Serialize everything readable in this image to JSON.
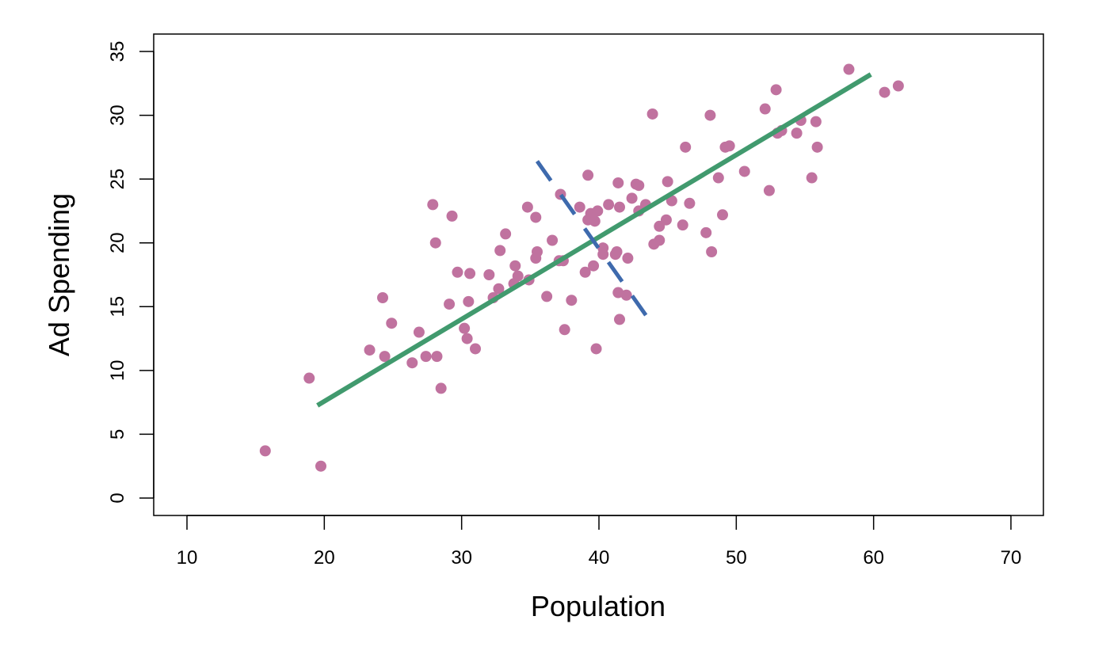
{
  "chart_data": {
    "type": "scatter",
    "title": "",
    "xlabel": "Population",
    "ylabel": "Ad Spending",
    "xlim": [
      7.5,
      72.5
    ],
    "ylim": [
      -1.3,
      36.4
    ],
    "xticks": [
      10,
      20,
      30,
      40,
      50,
      60,
      70
    ],
    "yticks": [
      0,
      5,
      10,
      15,
      20,
      25,
      30,
      35
    ],
    "grid": false,
    "colors": {
      "points": "#c0729f",
      "fit_line": "#419a6e",
      "dashed_line": "#3e6aad"
    },
    "points": [
      [
        15.7,
        3.7
      ],
      [
        19.75,
        2.5
      ],
      [
        18.9,
        9.4
      ],
      [
        23.3,
        11.6
      ],
      [
        24.4,
        11.1
      ],
      [
        24.25,
        15.7
      ],
      [
        24.9,
        13.7
      ],
      [
        26.4,
        10.6
      ],
      [
        26.9,
        13.0
      ],
      [
        27.4,
        11.1
      ],
      [
        28.2,
        11.1
      ],
      [
        28.5,
        8.6
      ],
      [
        27.9,
        23.0
      ],
      [
        28.1,
        20.0
      ],
      [
        29.3,
        22.1
      ],
      [
        29.1,
        15.2
      ],
      [
        29.7,
        17.7
      ],
      [
        30.2,
        13.3
      ],
      [
        30.5,
        15.4
      ],
      [
        30.4,
        12.5
      ],
      [
        30.6,
        17.6
      ],
      [
        31.0,
        11.7
      ],
      [
        32.0,
        17.5
      ],
      [
        32.3,
        15.7
      ],
      [
        32.7,
        16.4
      ],
      [
        32.8,
        19.4
      ],
      [
        33.2,
        20.7
      ],
      [
        33.9,
        18.2
      ],
      [
        34.1,
        17.4
      ],
      [
        33.8,
        16.8
      ],
      [
        34.9,
        17.1
      ],
      [
        34.8,
        22.8
      ],
      [
        35.4,
        22.0
      ],
      [
        35.5,
        19.3
      ],
      [
        35.4,
        18.8
      ],
      [
        36.2,
        15.8
      ],
      [
        36.6,
        20.2
      ],
      [
        37.2,
        23.8
      ],
      [
        37.1,
        18.6
      ],
      [
        37.4,
        18.6
      ],
      [
        37.5,
        13.2
      ],
      [
        38.0,
        15.5
      ],
      [
        38.6,
        22.8
      ],
      [
        39.0,
        17.7
      ],
      [
        39.2,
        25.3
      ],
      [
        39.2,
        21.8
      ],
      [
        39.4,
        22.3
      ],
      [
        39.7,
        21.7
      ],
      [
        39.6,
        18.2
      ],
      [
        39.9,
        22.5
      ],
      [
        39.8,
        11.7
      ],
      [
        40.3,
        19.6
      ],
      [
        40.3,
        19.1
      ],
      [
        40.7,
        23.0
      ],
      [
        41.2,
        19.1
      ],
      [
        41.3,
        19.3
      ],
      [
        41.4,
        24.7
      ],
      [
        41.5,
        22.8
      ],
      [
        41.4,
        16.1
      ],
      [
        41.5,
        14.0
      ],
      [
        42.0,
        15.9
      ],
      [
        42.1,
        18.8
      ],
      [
        42.4,
        23.5
      ],
      [
        42.7,
        24.6
      ],
      [
        42.9,
        24.5
      ],
      [
        42.9,
        22.5
      ],
      [
        43.4,
        23.0
      ],
      [
        43.9,
        30.1
      ],
      [
        44.0,
        19.9
      ],
      [
        44.4,
        21.3
      ],
      [
        44.4,
        20.2
      ],
      [
        44.9,
        21.8
      ],
      [
        45.0,
        24.8
      ],
      [
        45.3,
        23.3
      ],
      [
        46.3,
        27.5
      ],
      [
        46.1,
        21.4
      ],
      [
        46.6,
        23.1
      ],
      [
        47.8,
        20.8
      ],
      [
        48.1,
        30.0
      ],
      [
        48.2,
        19.3
      ],
      [
        48.7,
        25.1
      ],
      [
        49.0,
        22.2
      ],
      [
        49.2,
        27.5
      ],
      [
        49.5,
        27.6
      ],
      [
        50.6,
        25.6
      ],
      [
        52.1,
        30.5
      ],
      [
        52.4,
        24.1
      ],
      [
        52.9,
        32.0
      ],
      [
        53.0,
        28.6
      ],
      [
        53.3,
        28.8
      ],
      [
        54.4,
        28.6
      ],
      [
        54.7,
        29.6
      ],
      [
        55.5,
        25.1
      ],
      [
        55.8,
        29.5
      ],
      [
        55.9,
        27.5
      ],
      [
        58.2,
        33.6
      ],
      [
        60.8,
        31.8
      ],
      [
        61.8,
        32.3
      ]
    ],
    "fit_line": {
      "x": [
        19.5,
        59.8
      ],
      "y": [
        7.26,
        33.2
      ]
    },
    "dashed_line": {
      "x": [
        35.5,
        43.7
      ],
      "y": [
        26.4,
        13.9
      ]
    }
  }
}
